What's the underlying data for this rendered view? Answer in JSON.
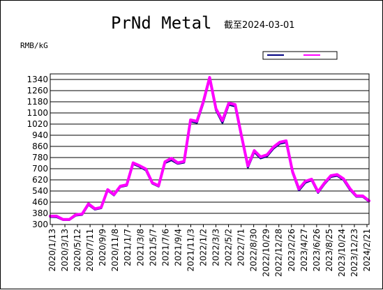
{
  "chart_data": {
    "type": "line",
    "title": "PrNd Metal",
    "subtitle": "截至2024-03-01",
    "ylabel": "RMB/kG",
    "ylim": [
      300,
      1380
    ],
    "yticks": [
      300,
      380,
      460,
      540,
      620,
      700,
      780,
      860,
      940,
      1020,
      1100,
      1180,
      1260,
      1340
    ],
    "xtick_labels": [
      "2020/1/13",
      "2020/3/13",
      "2020/5/12",
      "2020/7/11",
      "2020/9/9",
      "2020/11/8",
      "2021/1/7",
      "2021/3/8",
      "2021/5/7",
      "2021/7/6",
      "2021/9/4",
      "2021/11/3",
      "2022/1/2",
      "2022/3/3",
      "2022/5/2",
      "2022/7/1",
      "2022/8/30",
      "2022/10/29",
      "2022/12/28",
      "2023/2/26",
      "2023/4/27",
      "2023/6/26",
      "2023/8/25",
      "2023/10/24",
      "2023/12/23",
      "2024/2/21"
    ],
    "grid": "horizontal",
    "legend_placement": "top-right",
    "colors": {
      "series_low": "#000080",
      "series_high": "#ff00ff",
      "grid": "#000000"
    },
    "series": [
      {
        "name": "",
        "color": "#000080",
        "values": [
          355,
          354,
          333,
          333,
          365,
          370,
          442,
          408,
          418,
          545,
          510,
          570,
          580,
          735,
          715,
          690,
          595,
          573,
          742,
          762,
          736,
          745,
          1040,
          1030,
          1170,
          1345,
          1120,
          1030,
          1160,
          1148,
          925,
          710,
          820,
          775,
          790,
          845,
          880,
          890,
          672,
          545,
          600,
          618,
          528,
          590,
          642,
          650,
          620,
          550,
          500,
          500,
          465
        ]
      },
      {
        "name": "",
        "color": "#ff00ff",
        "values": [
          360,
          360,
          336,
          336,
          370,
          375,
          448,
          413,
          423,
          550,
          515,
          575,
          585,
          742,
          722,
          698,
          600,
          578,
          750,
          775,
          742,
          752,
          1050,
          1040,
          1180,
          1355,
          1130,
          1045,
          1170,
          1160,
          935,
          720,
          830,
          785,
          800,
          855,
          890,
          900,
          680,
          555,
          610,
          625,
          535,
          597,
          650,
          658,
          628,
          558,
          505,
          505,
          470
        ]
      }
    ]
  }
}
